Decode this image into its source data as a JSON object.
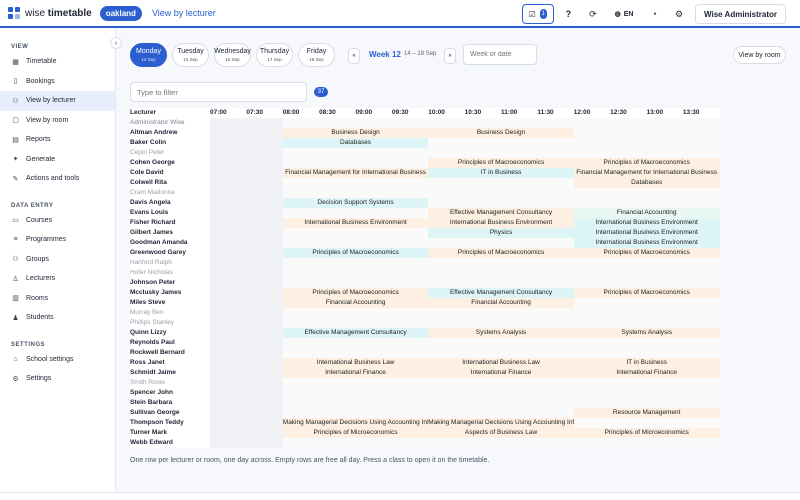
{
  "app": {
    "brand_light": "wise ",
    "brand_bold": "timetable",
    "school": "oakland",
    "page_title": "View by lecturer",
    "accent_color": "#2b5fcf"
  },
  "topbar": {
    "notifications_count": "1",
    "help_label": "?",
    "language": "EN",
    "user_name": "Wise Administrator",
    "icons": [
      "checklist-icon",
      "refresh-icon",
      "globe-icon",
      "palette-icon",
      "settings-icon"
    ]
  },
  "sidebar": {
    "collapse_label": "‹",
    "view_section": "VIEW",
    "view_items": [
      {
        "label": "Timetable",
        "icon": "calendar-icon"
      },
      {
        "label": "Bookings",
        "icon": "bookmark-icon"
      },
      {
        "label": "View by lecturer",
        "icon": "users-icon"
      },
      {
        "label": "View by room",
        "icon": "door-icon"
      },
      {
        "label": "Reports",
        "icon": "file-icon"
      },
      {
        "label": "Generate",
        "icon": "sparkle-icon"
      },
      {
        "label": "Actions and tools",
        "icon": "wrench-icon"
      }
    ],
    "data_section": "DATA ENTRY",
    "data_items": [
      {
        "label": "Courses",
        "icon": "book-icon"
      },
      {
        "label": "Programmes",
        "icon": "layers-icon"
      },
      {
        "label": "Groups",
        "icon": "group-icon"
      },
      {
        "label": "Lecturers",
        "icon": "person-icon"
      },
      {
        "label": "Rooms",
        "icon": "building-icon"
      },
      {
        "label": "Students",
        "icon": "student-icon"
      }
    ],
    "settings_section": "SETTINGS",
    "settings_items": [
      {
        "label": "School settings",
        "icon": "school-icon"
      },
      {
        "label": "Settings",
        "icon": "gear-icon"
      }
    ]
  },
  "week": {
    "days": [
      {
        "name": "Monday",
        "date": "14 Sep",
        "active": true
      },
      {
        "name": "Tuesday",
        "date": "15 Sep",
        "active": false
      },
      {
        "name": "Wednesday",
        "date": "16 Sep",
        "active": false
      },
      {
        "name": "Thursday",
        "date": "17 Sep",
        "active": false
      },
      {
        "name": "Friday",
        "date": "18 Sep",
        "active": false
      }
    ],
    "prev_label": "«",
    "next_label": "»",
    "week_label": "Week 12",
    "week_range": "14 – 18 Sep",
    "week_input_placeholder": "Week or date",
    "view_by_room_label": "View by room"
  },
  "filter": {
    "placeholder": "Type to filter",
    "count": "37"
  },
  "grid": {
    "lecturer_header": "Lecturer",
    "times": [
      "07:00",
      "07:30",
      "08:00",
      "08:30",
      "09:00",
      "09:30",
      "10:00",
      "10:30",
      "11:00",
      "11:30",
      "12:00",
      "12:30",
      "13:00",
      "13:30"
    ],
    "slots_per_hour_label": "each time column = 30 minutes",
    "rows": [
      {
        "name": "Administrator Wise",
        "style": "admin",
        "classes": []
      },
      {
        "name": "Altman Andrew",
        "style": "normal",
        "classes": [
          {
            "label": "Business Design",
            "start": 2,
            "span": 4,
            "color": "orange"
          },
          {
            "label": "Business Design",
            "start": 6,
            "span": 4,
            "color": "orange"
          }
        ]
      },
      {
        "name": "Baker Colin",
        "style": "normal",
        "classes": [
          {
            "label": "Databases",
            "start": 2,
            "span": 4,
            "color": "cyan"
          }
        ]
      },
      {
        "name": "Cepin Peter",
        "style": "free",
        "classes": []
      },
      {
        "name": "Cohen George",
        "style": "normal",
        "classes": [
          {
            "label": "Principles of Macroeconomics",
            "start": 6,
            "span": 4,
            "color": "orange"
          },
          {
            "label": "Principles of Macroeconomics",
            "start": 10,
            "span": 4,
            "color": "orange"
          }
        ]
      },
      {
        "name": "Cole David",
        "style": "normal",
        "classes": [
          {
            "label": "Financial Management for International Business",
            "start": 2,
            "span": 4,
            "color": "orange"
          },
          {
            "label": "IT in Business",
            "start": 6,
            "span": 4,
            "color": "cyan"
          },
          {
            "label": "Financial Management for International Business",
            "start": 10,
            "span": 4,
            "color": "orange"
          }
        ]
      },
      {
        "name": "Colwell Rita",
        "style": "normal",
        "classes": [
          {
            "label": "Databases",
            "start": 10,
            "span": 4,
            "color": "orange"
          }
        ]
      },
      {
        "name": "Cram Madonna",
        "style": "free",
        "classes": []
      },
      {
        "name": "Davis Angela",
        "style": "normal",
        "classes": [
          {
            "label": "Decision Support Systems",
            "start": 2,
            "span": 4,
            "color": "cyan"
          }
        ]
      },
      {
        "name": "Evans Louis",
        "style": "normal",
        "classes": [
          {
            "label": "Effective Management Consultancy",
            "start": 6,
            "span": 4,
            "color": "orange"
          },
          {
            "label": "Financial Accounting",
            "start": 10,
            "span": 4,
            "color": "mint"
          }
        ]
      },
      {
        "name": "Fisher Richard",
        "style": "normal",
        "classes": [
          {
            "label": "International Business Environment",
            "start": 2,
            "span": 4,
            "color": "orange"
          },
          {
            "label": "International Business Environment",
            "start": 6,
            "span": 4,
            "color": "orange"
          },
          {
            "label": "International Business Environment",
            "start": 10,
            "span": 4,
            "color": "cyan"
          }
        ]
      },
      {
        "name": "Gilbert James",
        "style": "normal",
        "classes": [
          {
            "label": "Physics",
            "start": 6,
            "span": 4,
            "color": "cyan"
          },
          {
            "label": "International Business Environment",
            "start": 10,
            "span": 4,
            "color": "cyan"
          }
        ]
      },
      {
        "name": "Goodman Amanda",
        "style": "normal",
        "classes": [
          {
            "label": "International Business Environment",
            "start": 10,
            "span": 4,
            "color": "cyan"
          }
        ]
      },
      {
        "name": "Greenwood Garey",
        "style": "normal",
        "classes": [
          {
            "label": "Principles of Macroeconomics",
            "start": 2,
            "span": 4,
            "color": "cyan"
          },
          {
            "label": "Principles of Macroeconomics",
            "start": 6,
            "span": 4,
            "color": "orange"
          },
          {
            "label": "Principles of Macroeconomics",
            "start": 10,
            "span": 4,
            "color": "orange"
          }
        ]
      },
      {
        "name": "Hanford Ralph",
        "style": "free",
        "classes": []
      },
      {
        "name": "Hofer Nicholas",
        "style": "free",
        "classes": []
      },
      {
        "name": "Johnson Peter",
        "style": "normal",
        "classes": []
      },
      {
        "name": "Mcclusky James",
        "style": "normal",
        "classes": [
          {
            "label": "Principles of Macroeconomics",
            "start": 2,
            "span": 4,
            "color": "orange"
          },
          {
            "label": "Effective Management Consultancy",
            "start": 6,
            "span": 4,
            "color": "cyan"
          },
          {
            "label": "Principles of Macroeconomics",
            "start": 10,
            "span": 4,
            "color": "orange"
          }
        ]
      },
      {
        "name": "Miles Steve",
        "style": "normal",
        "classes": [
          {
            "label": "Financial Accounting",
            "start": 2,
            "span": 4,
            "color": "orange"
          },
          {
            "label": "Financial Accounting",
            "start": 6,
            "span": 4,
            "color": "orange"
          }
        ]
      },
      {
        "name": "Murray Ben",
        "style": "free",
        "classes": []
      },
      {
        "name": "Phillips Stanley",
        "style": "free",
        "classes": []
      },
      {
        "name": "Quinn Lizzy",
        "style": "normal",
        "classes": [
          {
            "label": "Effective Management Consultancy",
            "start": 2,
            "span": 4,
            "color": "cyan"
          },
          {
            "label": "Systems Analysis",
            "start": 6,
            "span": 4,
            "color": "orange"
          },
          {
            "label": "Systems Analysis",
            "start": 10,
            "span": 4,
            "color": "orange"
          }
        ]
      },
      {
        "name": "Reynolds Paul",
        "style": "normal",
        "classes": []
      },
      {
        "name": "Rockwell Bernard",
        "style": "normal",
        "classes": []
      },
      {
        "name": "Ross Janet",
        "style": "normal",
        "classes": [
          {
            "label": "International Business Law",
            "start": 2,
            "span": 4,
            "color": "orange"
          },
          {
            "label": "International Business Law",
            "start": 6,
            "span": 4,
            "color": "orange"
          },
          {
            "label": "IT in Business",
            "start": 10,
            "span": 4,
            "color": "orange"
          }
        ]
      },
      {
        "name": "Schmidt Jaime",
        "style": "normal",
        "classes": [
          {
            "label": "International Finance",
            "start": 2,
            "span": 4,
            "color": "orange"
          },
          {
            "label": "International Finance",
            "start": 6,
            "span": 4,
            "color": "orange"
          },
          {
            "label": "International Finance",
            "start": 10,
            "span": 4,
            "color": "orange"
          }
        ]
      },
      {
        "name": "Smith Roxie",
        "style": "free",
        "classes": []
      },
      {
        "name": "Spencer John",
        "style": "normal",
        "classes": []
      },
      {
        "name": "Stein Barbara",
        "style": "normal",
        "classes": []
      },
      {
        "name": "Sullivan George",
        "style": "normal",
        "classes": [
          {
            "label": "Resource Management",
            "start": 10,
            "span": 4,
            "color": "orange"
          }
        ]
      },
      {
        "name": "Thompson Teddy",
        "style": "normal",
        "classes": [
          {
            "label": "Making Managerial Decisions Using Accounting Information",
            "start": 2,
            "span": 4,
            "color": "orange"
          },
          {
            "label": "Making Managerial Decisions Using Accounting Information",
            "start": 6,
            "span": 4,
            "color": "orange"
          }
        ]
      },
      {
        "name": "Turner Mark",
        "style": "normal",
        "classes": [
          {
            "label": "Principles of Microeconomics",
            "start": 2,
            "span": 4,
            "color": "orange"
          },
          {
            "label": "Aspects of Business Law",
            "start": 6,
            "span": 4,
            "color": "orange"
          },
          {
            "label": "Principles of Microeconomics",
            "start": 10,
            "span": 4,
            "color": "orange"
          }
        ]
      },
      {
        "name": "Webb Edward",
        "style": "normal",
        "classes": []
      }
    ]
  },
  "footnote": "One row per lecturer or room, one day across. Empty rows are free all day. Press a class to open it on the timetable."
}
